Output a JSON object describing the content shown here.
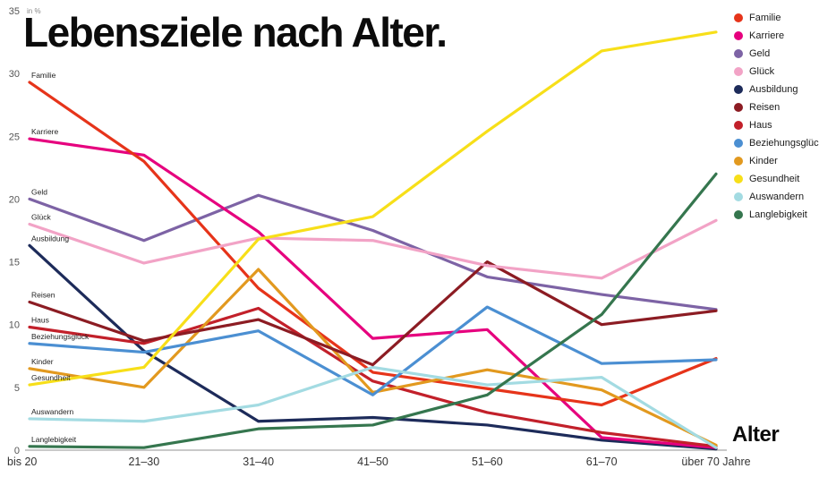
{
  "chart_data": {
    "type": "line",
    "title": "Lebensziele nach Alter.",
    "xlabel": "Alter",
    "ylabel": "in %",
    "ylim": [
      0,
      35
    ],
    "yticks": [
      0,
      5,
      10,
      15,
      20,
      25,
      30,
      35
    ],
    "grid": false,
    "legend_position": "top-right",
    "categories": [
      "bis 20",
      "21–30",
      "31–40",
      "41–50",
      "51–60",
      "61–70",
      "über 70 Jahre"
    ],
    "series": [
      {
        "name": "Familie",
        "color": "#e6341a",
        "values": [
          29.3,
          23.0,
          12.9,
          6.2,
          4.9,
          3.6,
          7.3
        ]
      },
      {
        "name": "Karriere",
        "color": "#e6007e",
        "values": [
          24.8,
          23.5,
          17.4,
          8.9,
          9.6,
          1.0,
          0.2
        ]
      },
      {
        "name": "Geld",
        "color": "#7d63a5",
        "values": [
          20.0,
          16.7,
          20.3,
          17.5,
          13.8,
          12.4,
          11.2
        ]
      },
      {
        "name": "Glück",
        "color": "#f2a3c6",
        "values": [
          18.0,
          14.9,
          16.9,
          16.7,
          14.7,
          13.7,
          18.3
        ]
      },
      {
        "name": "Ausbildung",
        "color": "#1d2b5a",
        "values": [
          16.3,
          7.9,
          2.3,
          2.6,
          2.0,
          0.8,
          0.1
        ]
      },
      {
        "name": "Reisen",
        "color": "#8c1c23",
        "values": [
          11.8,
          8.7,
          10.4,
          6.8,
          15.0,
          10.0,
          11.1
        ]
      },
      {
        "name": "Haus",
        "color": "#c2202a",
        "values": [
          9.8,
          8.5,
          11.3,
          5.5,
          3.0,
          1.4,
          0.3
        ]
      },
      {
        "name": "Beziehungsglück",
        "color": "#4b8fd2",
        "values": [
          8.5,
          7.8,
          9.5,
          4.4,
          11.4,
          6.9,
          7.2
        ]
      },
      {
        "name": "Kinder",
        "color": "#e2991f",
        "values": [
          6.5,
          5.0,
          14.4,
          4.6,
          6.4,
          4.8,
          0.4
        ]
      },
      {
        "name": "Gesundheit",
        "color": "#f7df19",
        "values": [
          5.2,
          6.6,
          16.8,
          18.6,
          25.4,
          31.8,
          33.3
        ]
      },
      {
        "name": "Auswandern",
        "color": "#a3dbe2",
        "values": [
          2.5,
          2.3,
          3.6,
          6.6,
          5.2,
          5.8,
          0.2
        ]
      },
      {
        "name": "Langlebigkeit",
        "color": "#35764e",
        "values": [
          0.3,
          0.2,
          1.7,
          2.0,
          4.4,
          10.8,
          22.0
        ]
      }
    ],
    "draw_order": [
      4,
      2,
      1,
      0,
      6,
      8,
      7,
      10,
      5,
      3,
      9,
      11
    ]
  }
}
